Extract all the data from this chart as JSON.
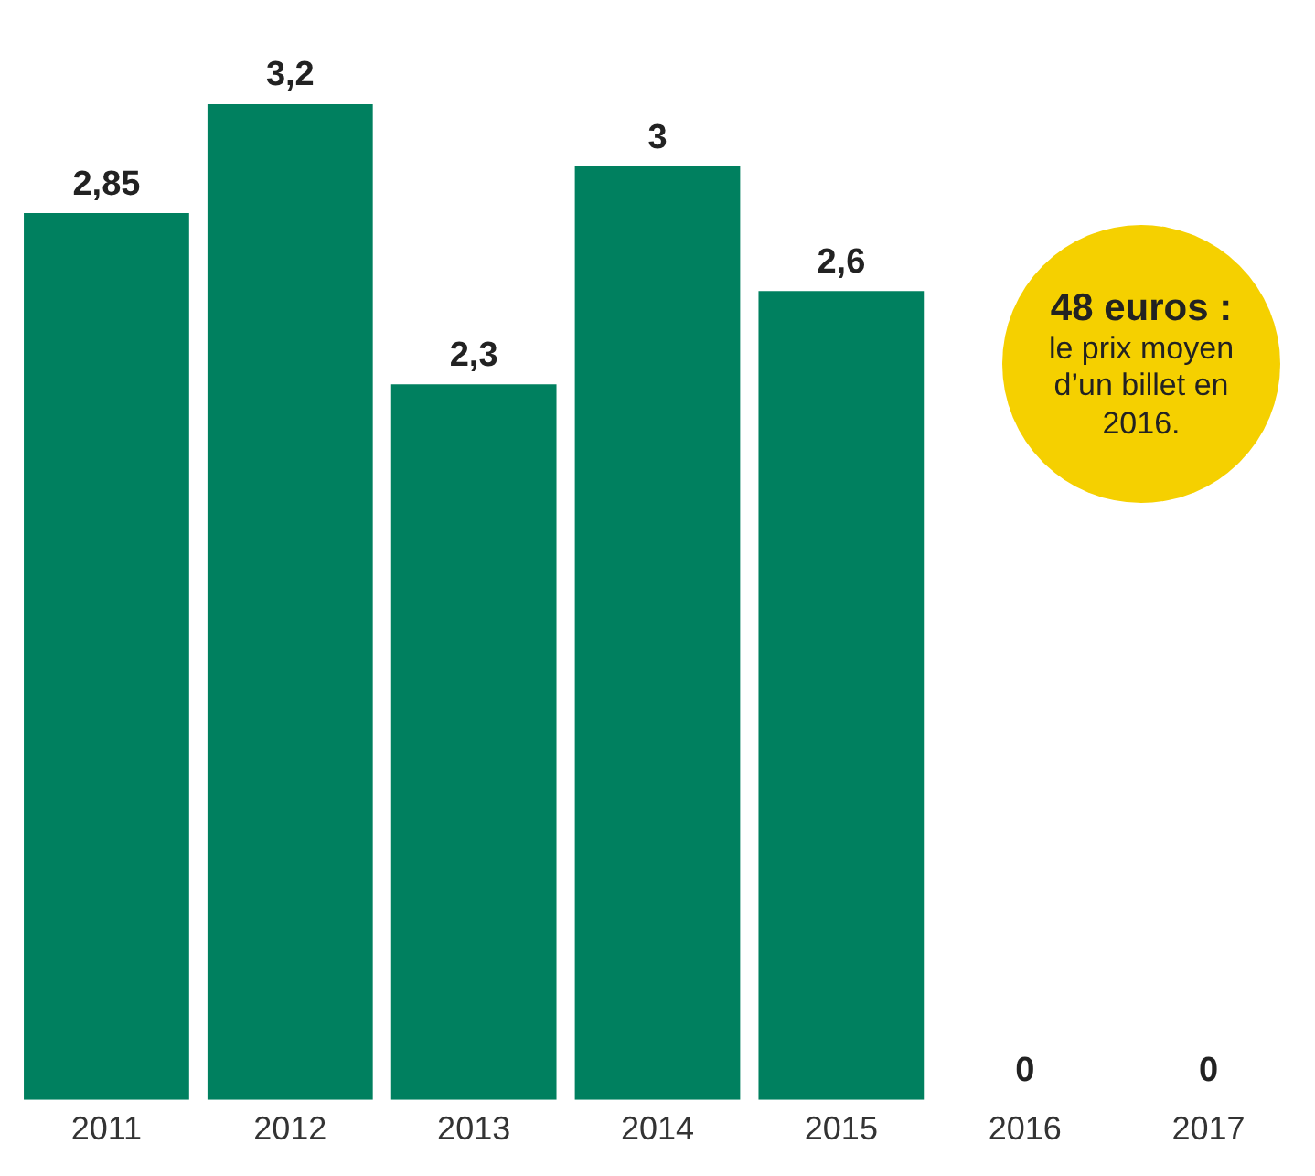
{
  "chart_data": {
    "type": "bar",
    "categories": [
      "2011",
      "2012",
      "2013",
      "2014",
      "2015",
      "2016",
      "2017"
    ],
    "values": [
      2.85,
      3.2,
      2.3,
      3,
      2.6,
      0,
      0
    ],
    "value_labels": [
      "2,85",
      "3,2",
      "2,3",
      "3",
      "2,6",
      "0",
      "0"
    ],
    "colors": [
      "#00805f",
      "#00805f",
      "#00805f",
      "#00805f",
      "#00805f",
      "#00805f",
      "#00805f"
    ],
    "annotations": [
      "48 euros :",
      "le prix moyen d’un billet en 2016."
    ],
    "grid": false,
    "legend": false,
    "tick_labels": "x"
  }
}
